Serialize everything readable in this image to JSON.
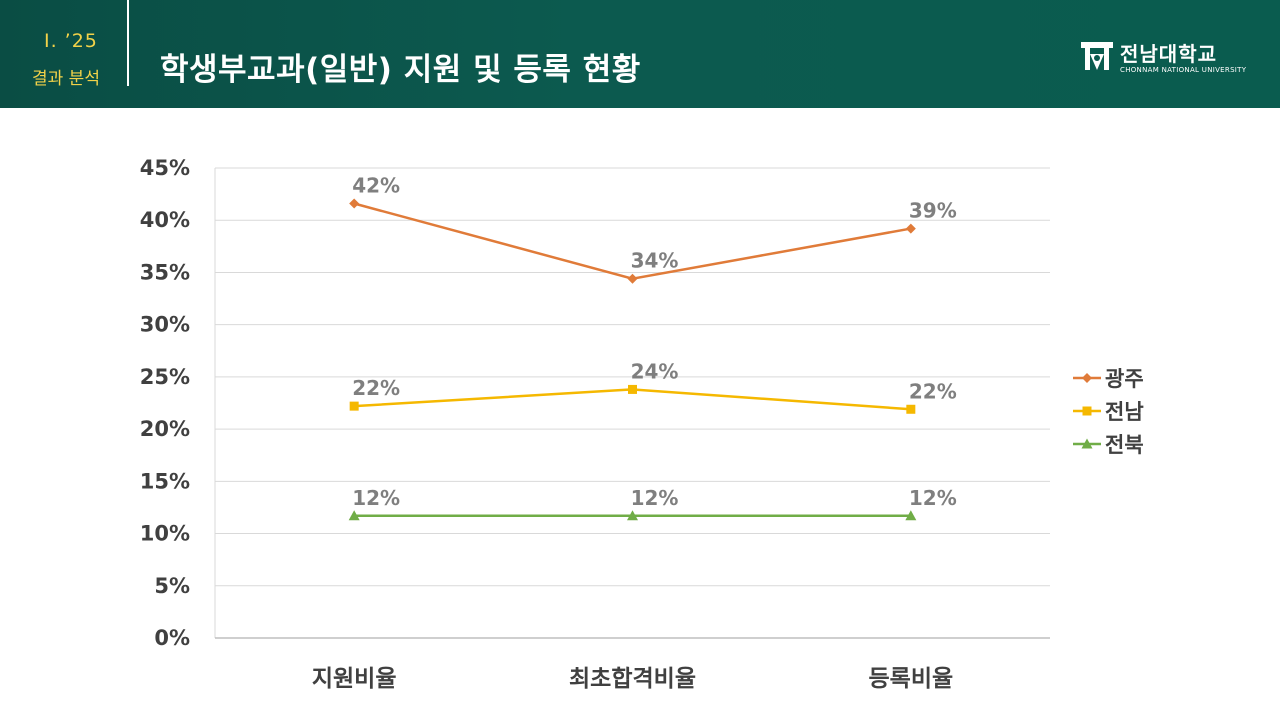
{
  "header": {
    "section_number": "Ⅰ. ’25",
    "section_name": "결과 분석",
    "title": "학생부교과(일반) 지원 및 등록 현황"
  },
  "logo": {
    "name": "전남대학교",
    "subtitle": "CHONNAM NATIONAL UNIVERSITY",
    "icon": "cnu-emblem-icon"
  },
  "colors": {
    "header_bg": "#0c5a4f",
    "accent_yellow": "#f2d249",
    "gwangju": "#e07b39",
    "jeonnam": "#f5b800",
    "jeonbuk": "#70ad47",
    "gridline": "#d9d9d9",
    "data_label": "#7f7f7f"
  },
  "chart_data": {
    "type": "line",
    "title": "",
    "xlabel": "",
    "ylabel": "",
    "categories": [
      "지원비율",
      "최초합격비율",
      "등록비율"
    ],
    "y_ticks": [
      "0%",
      "5%",
      "10%",
      "15%",
      "20%",
      "25%",
      "30%",
      "35%",
      "40%",
      "45%"
    ],
    "ylim": [
      0,
      45
    ],
    "legend_position": "right",
    "series": [
      {
        "name": "광주",
        "marker": "diamond",
        "values": [
          41.6,
          34.4,
          39.2
        ],
        "labels": [
          "42%",
          "34%",
          "39%"
        ]
      },
      {
        "name": "전남",
        "marker": "square",
        "values": [
          22.2,
          23.8,
          21.9
        ],
        "labels": [
          "22%",
          "24%",
          "22%"
        ]
      },
      {
        "name": "전북",
        "marker": "triangle",
        "values": [
          11.7,
          11.7,
          11.7
        ],
        "labels": [
          "12%",
          "12%",
          "12%"
        ]
      }
    ]
  }
}
